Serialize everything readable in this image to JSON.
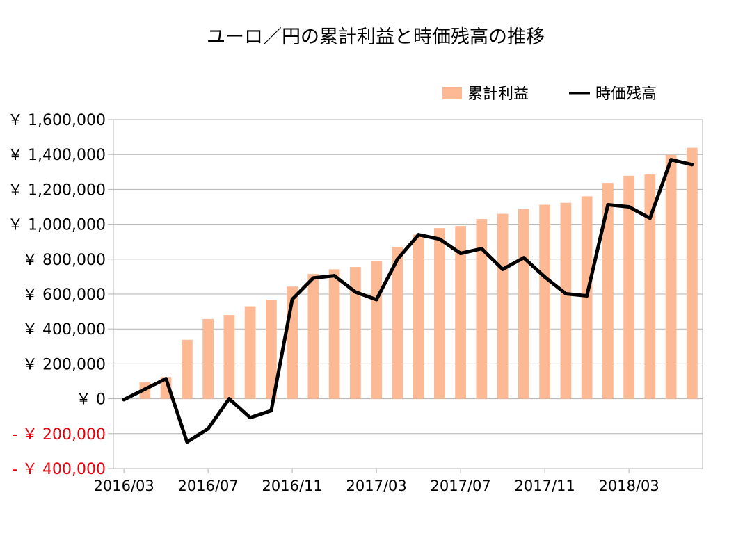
{
  "chart_data": {
    "type": "bar+line",
    "title": "ユーロ／円の累計利益と時価残高の推移",
    "categories": [
      "2016/03",
      "2016/04",
      "2016/05",
      "2016/06",
      "2016/07",
      "2016/08",
      "2016/09",
      "2016/10",
      "2016/11",
      "2016/12",
      "2017/01",
      "2017/02",
      "2017/03",
      "2017/04",
      "2017/05",
      "2017/06",
      "2017/07",
      "2017/08",
      "2017/09",
      "2017/10",
      "2017/11",
      "2017/12",
      "2018/01",
      "2018/02",
      "2018/03",
      "2018/04",
      "2018/05",
      "2018/06"
    ],
    "x_tick_labels": [
      "2016/03",
      "2016/07",
      "2016/11",
      "2017/03",
      "2017/07",
      "2017/11",
      "2018/03"
    ],
    "series": [
      {
        "name": "累計利益",
        "type": "bar",
        "color": "#FDB994",
        "values": [
          null,
          95000,
          125000,
          338000,
          457000,
          480000,
          530000,
          568000,
          643000,
          715000,
          742000,
          755000,
          787000,
          870000,
          940000,
          978000,
          990000,
          1030000,
          1060000,
          1087000,
          1112000,
          1123000,
          1160000,
          1237000,
          1278000,
          1285000,
          1397000,
          1438000
        ]
      },
      {
        "name": "時価残高",
        "type": "line",
        "color": "#000000",
        "values": [
          -5000,
          55000,
          115000,
          -248000,
          -172000,
          0,
          -108000,
          -68000,
          570000,
          692000,
          705000,
          612000,
          568000,
          800000,
          940000,
          915000,
          833000,
          860000,
          742000,
          808000,
          698000,
          602000,
          590000,
          1112000,
          1100000,
          1035000,
          1370000,
          1342000
        ]
      }
    ],
    "ylim": [
      -400000,
      1600000
    ],
    "y_ticks": [
      1600000,
      1400000,
      1200000,
      1000000,
      800000,
      600000,
      400000,
      200000,
      0,
      -200000,
      -400000
    ],
    "y_tick_labels": [
      "￥ 1,600,000",
      "￥ 1,400,000",
      "￥ 1,200,000",
      "￥ 1,000,000",
      "￥ 800,000",
      "￥ 600,000",
      "￥ 400,000",
      "￥ 200,000",
      "￥ 0",
      "- ￥ 200,000",
      "- ￥ 400,000"
    ],
    "negative_label_color": "#E8000B",
    "grid": true,
    "legend_position": "top-right",
    "legend": [
      {
        "label": "累計利益",
        "kind": "bar"
      },
      {
        "label": "時価残高",
        "kind": "line"
      }
    ]
  }
}
